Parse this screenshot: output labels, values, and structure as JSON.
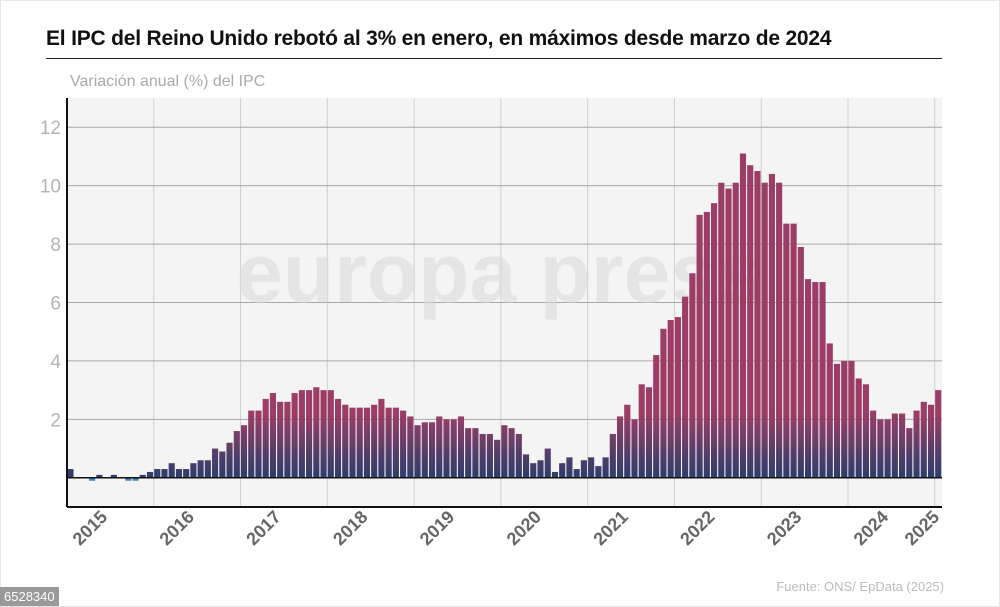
{
  "header": {
    "title": "El IPC del Reino Unido rebotó al 3% en enero, en máximos desde marzo de 2024",
    "subtitle": "Variación anual (%) del IPC"
  },
  "footer": {
    "source": "Fuente: ONS/ EpData (2025)",
    "id": "6528340"
  },
  "watermark": "europa press",
  "colors": {
    "positive_top": "#9b3d66",
    "positive_bottom": "#2b3e6c",
    "negative": "#3a86b8",
    "plot_background": "#f4f4f4"
  },
  "chart_data": {
    "type": "bar",
    "start": "2015-01",
    "frequency": "monthly",
    "ylim": [
      -1,
      13
    ],
    "yticks": [
      2,
      4,
      6,
      8,
      10,
      12
    ],
    "xtick_labels": [
      "2015",
      "2016",
      "2017",
      "2018",
      "2019",
      "2020",
      "2021",
      "2022",
      "2023",
      "2024",
      "2025"
    ],
    "grid": true,
    "values": [
      0.3,
      0.0,
      0.0,
      -0.1,
      0.1,
      0.0,
      0.1,
      0.0,
      -0.1,
      -0.1,
      0.1,
      0.2,
      0.3,
      0.3,
      0.5,
      0.3,
      0.3,
      0.5,
      0.6,
      0.6,
      1.0,
      0.9,
      1.2,
      1.6,
      1.8,
      2.3,
      2.3,
      2.7,
      2.9,
      2.6,
      2.6,
      2.9,
      3.0,
      3.0,
      3.1,
      3.0,
      3.0,
      2.7,
      2.5,
      2.4,
      2.4,
      2.4,
      2.5,
      2.7,
      2.4,
      2.4,
      2.3,
      2.1,
      1.8,
      1.9,
      1.9,
      2.1,
      2.0,
      2.0,
      2.1,
      1.7,
      1.7,
      1.5,
      1.5,
      1.3,
      1.8,
      1.7,
      1.5,
      0.8,
      0.5,
      0.6,
      1.0,
      0.2,
      0.5,
      0.7,
      0.3,
      0.6,
      0.7,
      0.4,
      0.7,
      1.5,
      2.1,
      2.5,
      2.0,
      3.2,
      3.1,
      4.2,
      5.1,
      5.4,
      5.5,
      6.2,
      7.0,
      9.0,
      9.1,
      9.4,
      10.1,
      9.9,
      10.1,
      11.1,
      10.7,
      10.5,
      10.1,
      10.4,
      10.1,
      8.7,
      8.7,
      7.9,
      6.8,
      6.7,
      6.7,
      4.6,
      3.9,
      4.0,
      4.0,
      3.4,
      3.2,
      2.3,
      2.0,
      2.0,
      2.2,
      2.2,
      1.7,
      2.3,
      2.6,
      2.5,
      3.0
    ]
  }
}
